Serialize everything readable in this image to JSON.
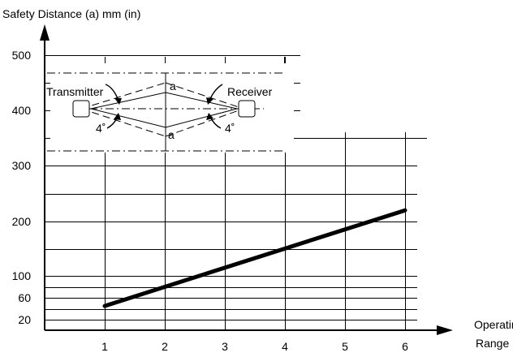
{
  "chart_data": {
    "type": "line",
    "ylabel": "Safety Distance (a) mm (in)",
    "xlabel": [
      "Operating",
      "Range"
    ],
    "x_ticks": [
      1,
      2,
      3,
      4,
      5,
      6
    ],
    "y_ticks": [
      20,
      60,
      100,
      200,
      300,
      400,
      500
    ],
    "series": [
      {
        "x": [
          1,
          6
        ],
        "y": [
          45,
          220
        ]
      }
    ],
    "grid": true,
    "inset": {
      "transmitter_label": "Transmitter",
      "receiver_label": "Receiver",
      "distance_label_top": "a",
      "distance_label_bottom": "a",
      "angle_label_left": "4˚",
      "angle_label_right": "4˚"
    }
  }
}
